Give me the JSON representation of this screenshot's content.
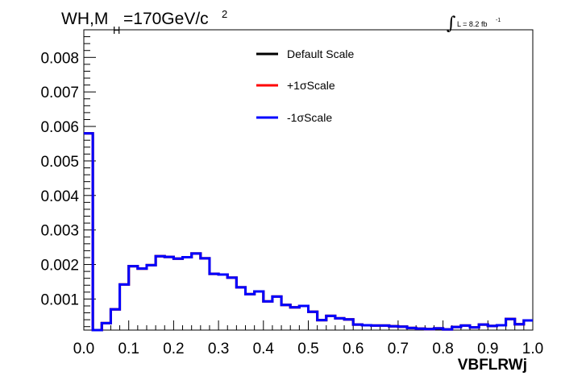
{
  "chart_data": {
    "type": "histogram-step",
    "title_main": "WH,M",
    "title_sub": "H",
    "title_rest": "=170GeV/c",
    "title_sup": "2",
    "lumi_label": "L = 8.2 fb",
    "lumi_sup": "-1",
    "xlabel": "VBFLRWj",
    "xlim": [
      0.0,
      1.0
    ],
    "ylim": [
      0.0001,
      0.0088
    ],
    "x_ticks": [
      "0.0",
      "0.1",
      "0.2",
      "0.3",
      "0.4",
      "0.5",
      "0.6",
      "0.7",
      "0.8",
      "0.9",
      "1.0"
    ],
    "y_ticks": [
      "0.001",
      "0.002",
      "0.003",
      "0.004",
      "0.005",
      "0.006",
      "0.007",
      "0.008"
    ],
    "grid": false,
    "legend_position": "top-center",
    "bin_width": 0.02,
    "series": [
      {
        "name": "Default Scale",
        "color": "#000000",
        "values": [
          0.0058,
          0.0001,
          0.0003,
          0.0007,
          0.00142,
          0.00195,
          0.00188,
          0.00198,
          0.00224,
          0.00222,
          0.00217,
          0.00221,
          0.00232,
          0.00218,
          0.00173,
          0.00171,
          0.00162,
          0.00134,
          0.00114,
          0.00122,
          0.00093,
          0.00107,
          0.00083,
          0.00076,
          0.0008,
          0.00063,
          0.00039,
          0.00051,
          0.00044,
          0.00041,
          0.00026,
          0.00024,
          0.00023,
          0.00023,
          0.00021,
          0.0002,
          0.00016,
          0.00014,
          0.00013,
          0.00015,
          0.00012,
          0.00019,
          0.00023,
          0.00018,
          0.00026,
          0.00022,
          0.00024,
          0.00042,
          0.00027,
          0.00038
        ]
      },
      {
        "name": "+1σScale",
        "color": "#ff0000",
        "values": [
          0.0058,
          0.0001,
          0.0003,
          0.0007,
          0.00142,
          0.00195,
          0.00188,
          0.00198,
          0.00224,
          0.00222,
          0.00217,
          0.00221,
          0.00232,
          0.00218,
          0.00173,
          0.00171,
          0.00162,
          0.00134,
          0.00114,
          0.00122,
          0.00093,
          0.00107,
          0.00083,
          0.00076,
          0.0008,
          0.00063,
          0.00039,
          0.00051,
          0.00044,
          0.00041,
          0.00026,
          0.00024,
          0.00023,
          0.00023,
          0.00021,
          0.0002,
          0.00016,
          0.00014,
          0.00013,
          0.00015,
          0.00012,
          0.00019,
          0.00023,
          0.00018,
          0.00026,
          0.00022,
          0.00024,
          0.00042,
          0.00027,
          0.00038
        ]
      },
      {
        "name": "-1σScale",
        "color": "#0000ff",
        "values": [
          0.0058,
          0.0001,
          0.0003,
          0.0007,
          0.00142,
          0.00195,
          0.00188,
          0.00198,
          0.00224,
          0.00222,
          0.00217,
          0.00221,
          0.00232,
          0.00218,
          0.00173,
          0.00171,
          0.00162,
          0.00134,
          0.00114,
          0.00122,
          0.00093,
          0.00107,
          0.00083,
          0.00076,
          0.0008,
          0.00063,
          0.00039,
          0.00051,
          0.00044,
          0.00041,
          0.00026,
          0.00024,
          0.00023,
          0.00023,
          0.00021,
          0.0002,
          0.00016,
          0.00014,
          0.00013,
          0.00015,
          0.00012,
          0.00019,
          0.00023,
          0.00018,
          0.00026,
          0.00022,
          0.00024,
          0.00042,
          0.00027,
          0.00038
        ]
      }
    ]
  }
}
